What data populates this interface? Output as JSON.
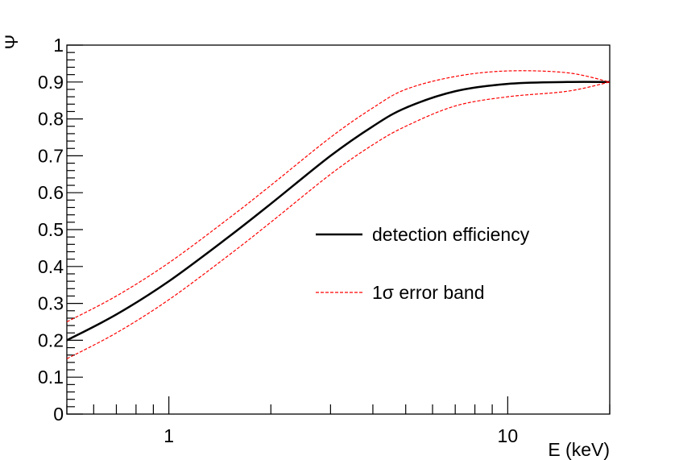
{
  "chart_data": {
    "type": "line",
    "title": "",
    "xlabel": "E (keV)",
    "ylabel": "Ψ",
    "xscale": "log",
    "xlim": [
      0.5,
      20
    ],
    "ylim": [
      0,
      1
    ],
    "x_tick_labels": [
      "1",
      "10"
    ],
    "y_tick_labels": [
      "0",
      "0.1",
      "0.2",
      "0.3",
      "0.4",
      "0.5",
      "0.6",
      "0.7",
      "0.8",
      "0.9",
      "1"
    ],
    "grid": false,
    "legend_position": "center-right",
    "x": [
      0.5,
      0.7,
      1,
      1.5,
      2,
      3,
      4,
      5,
      7,
      10,
      15,
      20
    ],
    "series": [
      {
        "name": "detection efficiency",
        "style": "solid",
        "color": "#000000",
        "values": [
          0.2,
          0.27,
          0.36,
          0.48,
          0.57,
          0.7,
          0.78,
          0.83,
          0.875,
          0.895,
          0.9,
          0.9
        ]
      },
      {
        "name": "1σ error band",
        "style": "dashed",
        "color": "#ff0000",
        "values": [
          0.25,
          0.32,
          0.41,
          0.53,
          0.62,
          0.75,
          0.83,
          0.88,
          0.915,
          0.93,
          0.925,
          0.9
        ]
      },
      {
        "name": "",
        "style": "dashed",
        "color": "#ff0000",
        "values": [
          0.15,
          0.22,
          0.31,
          0.43,
          0.52,
          0.65,
          0.73,
          0.78,
          0.835,
          0.86,
          0.875,
          0.9
        ]
      }
    ]
  }
}
